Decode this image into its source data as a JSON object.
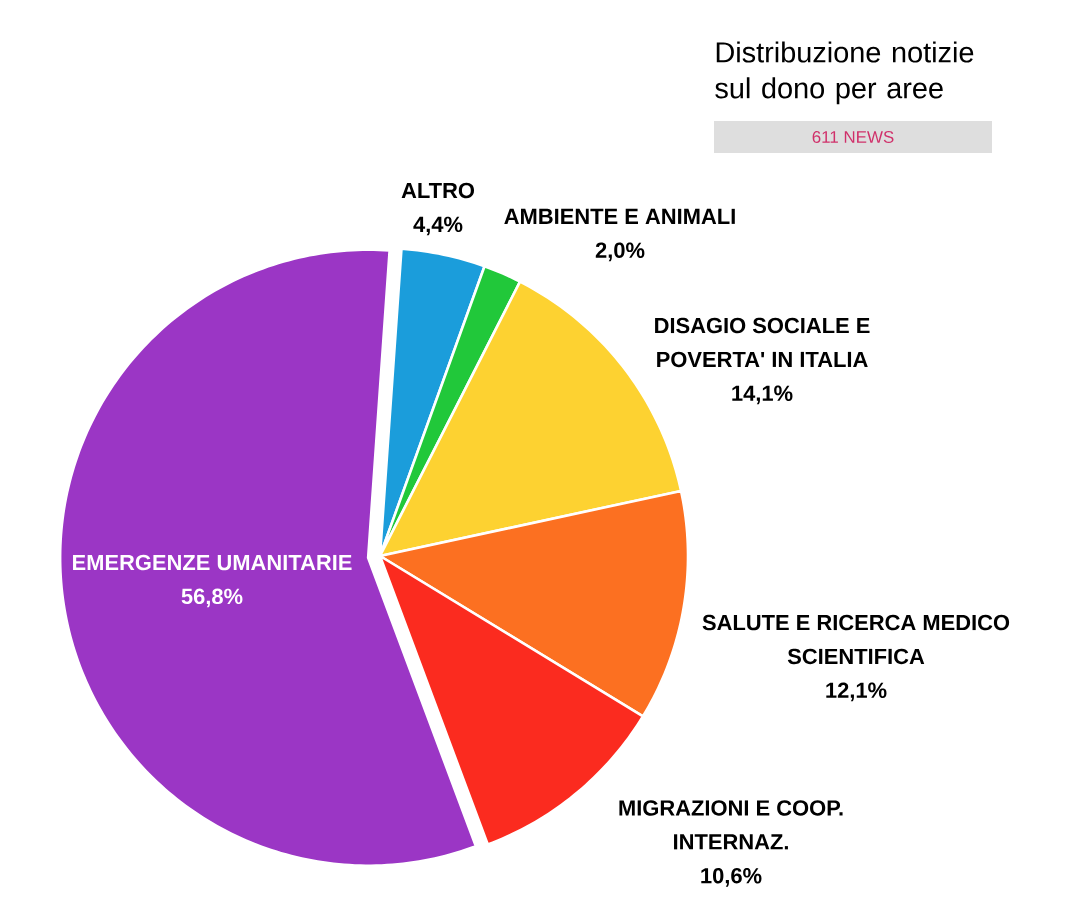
{
  "chart_data": {
    "type": "pie",
    "title": "Distribuzione notizie sul dono per aree",
    "subtitle": "611 NEWS",
    "categories": [
      "ALTRO",
      "AMBIENTE E ANIMALI",
      "DISAGIO SOCIALE E POVERTA' IN ITALIA",
      "SALUTE E RICERCA MEDICO SCIENTIFICA",
      "MIGRAZIONI E COOP. INTERNAZ.",
      "EMERGENZE UMANITARIE"
    ],
    "values": [
      4.4,
      2.0,
      14.1,
      12.1,
      10.6,
      56.8
    ],
    "colors": [
      "#1b9ddb",
      "#21c83a",
      "#fdd231",
      "#fc7021",
      "#fb2b1f",
      "#9b36c5"
    ],
    "value_labels": [
      "4,4%",
      "2,0%",
      "14,1%",
      "12,1%",
      "10,6%",
      "56,8%"
    ]
  }
}
